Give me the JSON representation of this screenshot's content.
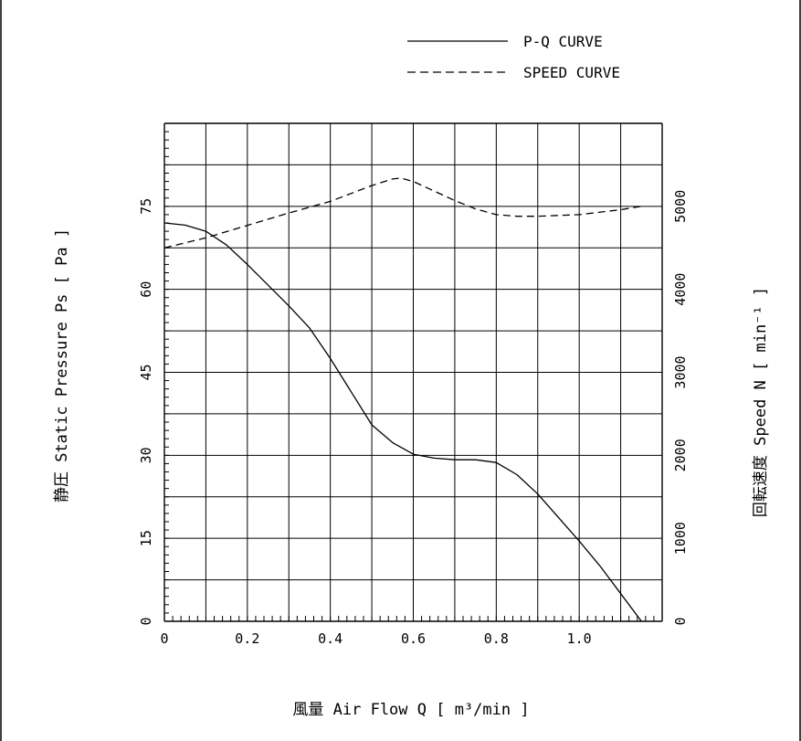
{
  "chart_data": {
    "type": "line",
    "legend": {
      "position": "top-right",
      "entries": [
        {
          "label": "P-Q CURVE",
          "style": "solid"
        },
        {
          "label": "SPEED CURVE",
          "style": "dashed"
        }
      ]
    },
    "xlabel": "風量 Air Flow Q [ m³/min ]",
    "ylabel_left": "静圧 Static Pressure Ps [ Pa ]",
    "ylabel_right": "回転速度 Speed N [ min⁻¹ ]",
    "x_ticks": [
      "0",
      "0.2",
      "0.4",
      "0.6",
      "0.8",
      "1.0"
    ],
    "y_left_ticks": [
      "0",
      "15",
      "30",
      "45",
      "60",
      "75"
    ],
    "y_right_ticks": [
      "0",
      "1000",
      "2000",
      "3000",
      "4000",
      "5000"
    ],
    "xlim": [
      0,
      1.2
    ],
    "ylim_left": [
      0,
      90
    ],
    "ylim_right": [
      0,
      6000
    ],
    "grid": true,
    "series": [
      {
        "name": "P-Q CURVE",
        "axis": "left",
        "style": "solid",
        "points": [
          [
            0,
            72
          ],
          [
            0.05,
            71.6
          ],
          [
            0.1,
            70.5
          ],
          [
            0.15,
            68
          ],
          [
            0.2,
            64.5
          ],
          [
            0.3,
            57
          ],
          [
            0.35,
            53
          ],
          [
            0.4,
            47.5
          ],
          [
            0.45,
            41.5
          ],
          [
            0.5,
            35.5
          ],
          [
            0.55,
            32.3
          ],
          [
            0.6,
            30.2
          ],
          [
            0.65,
            29.5
          ],
          [
            0.7,
            29.2
          ],
          [
            0.75,
            29.2
          ],
          [
            0.8,
            28.7
          ],
          [
            0.85,
            26.5
          ],
          [
            0.9,
            23
          ],
          [
            1.0,
            14.5
          ],
          [
            1.05,
            10
          ],
          [
            1.1,
            5
          ],
          [
            1.15,
            0
          ]
        ]
      },
      {
        "name": "SPEED CURVE",
        "axis": "right",
        "style": "dashed",
        "points": [
          [
            0,
            4500
          ],
          [
            0.1,
            4620
          ],
          [
            0.2,
            4770
          ],
          [
            0.3,
            4920
          ],
          [
            0.4,
            5060
          ],
          [
            0.5,
            5250
          ],
          [
            0.55,
            5330
          ],
          [
            0.57,
            5340
          ],
          [
            0.6,
            5300
          ],
          [
            0.7,
            5070
          ],
          [
            0.75,
            4970
          ],
          [
            0.8,
            4900
          ],
          [
            0.85,
            4880
          ],
          [
            0.9,
            4880
          ],
          [
            1.0,
            4900
          ],
          [
            1.1,
            4960
          ],
          [
            1.15,
            5000
          ]
        ]
      }
    ]
  }
}
